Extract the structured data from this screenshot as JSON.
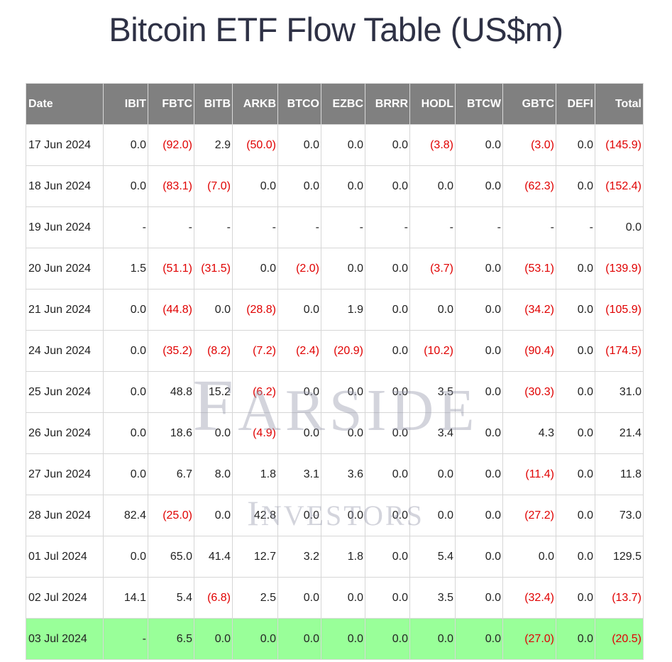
{
  "title": "Bitcoin ETF Flow Table (US$m)",
  "watermark": {
    "line1": "FARSIDE",
    "line2": "INVESTORS"
  },
  "colors": {
    "header_bg": "#808080",
    "negative": "#e00000",
    "highlight_row": "#99ff99",
    "title": "#2e3145"
  },
  "chart_data": {
    "type": "table",
    "title": "Bitcoin ETF Flow Table (US$m)",
    "columns": [
      "Date",
      "IBIT",
      "FBTC",
      "BITB",
      "ARKB",
      "BTCO",
      "EZBC",
      "BRRR",
      "HODL",
      "BTCW",
      "GBTC",
      "DEFI",
      "Total"
    ],
    "highlighted_row": "03 Jul 2024",
    "rows": [
      [
        "17 Jun 2024",
        "0.0",
        "(92.0)",
        "2.9",
        "(50.0)",
        "0.0",
        "0.0",
        "0.0",
        "(3.8)",
        "0.0",
        "(3.0)",
        "0.0",
        "(145.9)"
      ],
      [
        "18 Jun 2024",
        "0.0",
        "(83.1)",
        "(7.0)",
        "0.0",
        "0.0",
        "0.0",
        "0.0",
        "0.0",
        "0.0",
        "(62.3)",
        "0.0",
        "(152.4)"
      ],
      [
        "19 Jun 2024",
        "-",
        "-",
        "-",
        "-",
        "-",
        "-",
        "-",
        "-",
        "-",
        "-",
        "-",
        "0.0"
      ],
      [
        "20 Jun 2024",
        "1.5",
        "(51.1)",
        "(31.5)",
        "0.0",
        "(2.0)",
        "0.0",
        "0.0",
        "(3.7)",
        "0.0",
        "(53.1)",
        "0.0",
        "(139.9)"
      ],
      [
        "21 Jun 2024",
        "0.0",
        "(44.8)",
        "0.0",
        "(28.8)",
        "0.0",
        "1.9",
        "0.0",
        "0.0",
        "0.0",
        "(34.2)",
        "0.0",
        "(105.9)"
      ],
      [
        "24 Jun 2024",
        "0.0",
        "(35.2)",
        "(8.2)",
        "(7.2)",
        "(2.4)",
        "(20.9)",
        "0.0",
        "(10.2)",
        "0.0",
        "(90.4)",
        "0.0",
        "(174.5)"
      ],
      [
        "25 Jun 2024",
        "0.0",
        "48.8",
        "15.2",
        "(6.2)",
        "0.0",
        "0.0",
        "0.0",
        "3.5",
        "0.0",
        "(30.3)",
        "0.0",
        "31.0"
      ],
      [
        "26 Jun 2024",
        "0.0",
        "18.6",
        "0.0",
        "(4.9)",
        "0.0",
        "0.0",
        "0.0",
        "3.4",
        "0.0",
        "4.3",
        "0.0",
        "21.4"
      ],
      [
        "27 Jun 2024",
        "0.0",
        "6.7",
        "8.0",
        "1.8",
        "3.1",
        "3.6",
        "0.0",
        "0.0",
        "0.0",
        "(11.4)",
        "0.0",
        "11.8"
      ],
      [
        "28 Jun 2024",
        "82.4",
        "(25.0)",
        "0.0",
        "42.8",
        "0.0",
        "0.0",
        "0.0",
        "0.0",
        "0.0",
        "(27.2)",
        "0.0",
        "73.0"
      ],
      [
        "01 Jul 2024",
        "0.0",
        "65.0",
        "41.4",
        "12.7",
        "3.2",
        "1.8",
        "0.0",
        "5.4",
        "0.0",
        "0.0",
        "0.0",
        "129.5"
      ],
      [
        "02 Jul 2024",
        "14.1",
        "5.4",
        "(6.8)",
        "2.5",
        "0.0",
        "0.0",
        "0.0",
        "3.5",
        "0.0",
        "(32.4)",
        "0.0",
        "(13.7)"
      ],
      [
        "03 Jul 2024",
        "-",
        "6.5",
        "0.0",
        "0.0",
        "0.0",
        "0.0",
        "0.0",
        "0.0",
        "0.0",
        "(27.0)",
        "0.0",
        "(20.5)"
      ]
    ]
  }
}
